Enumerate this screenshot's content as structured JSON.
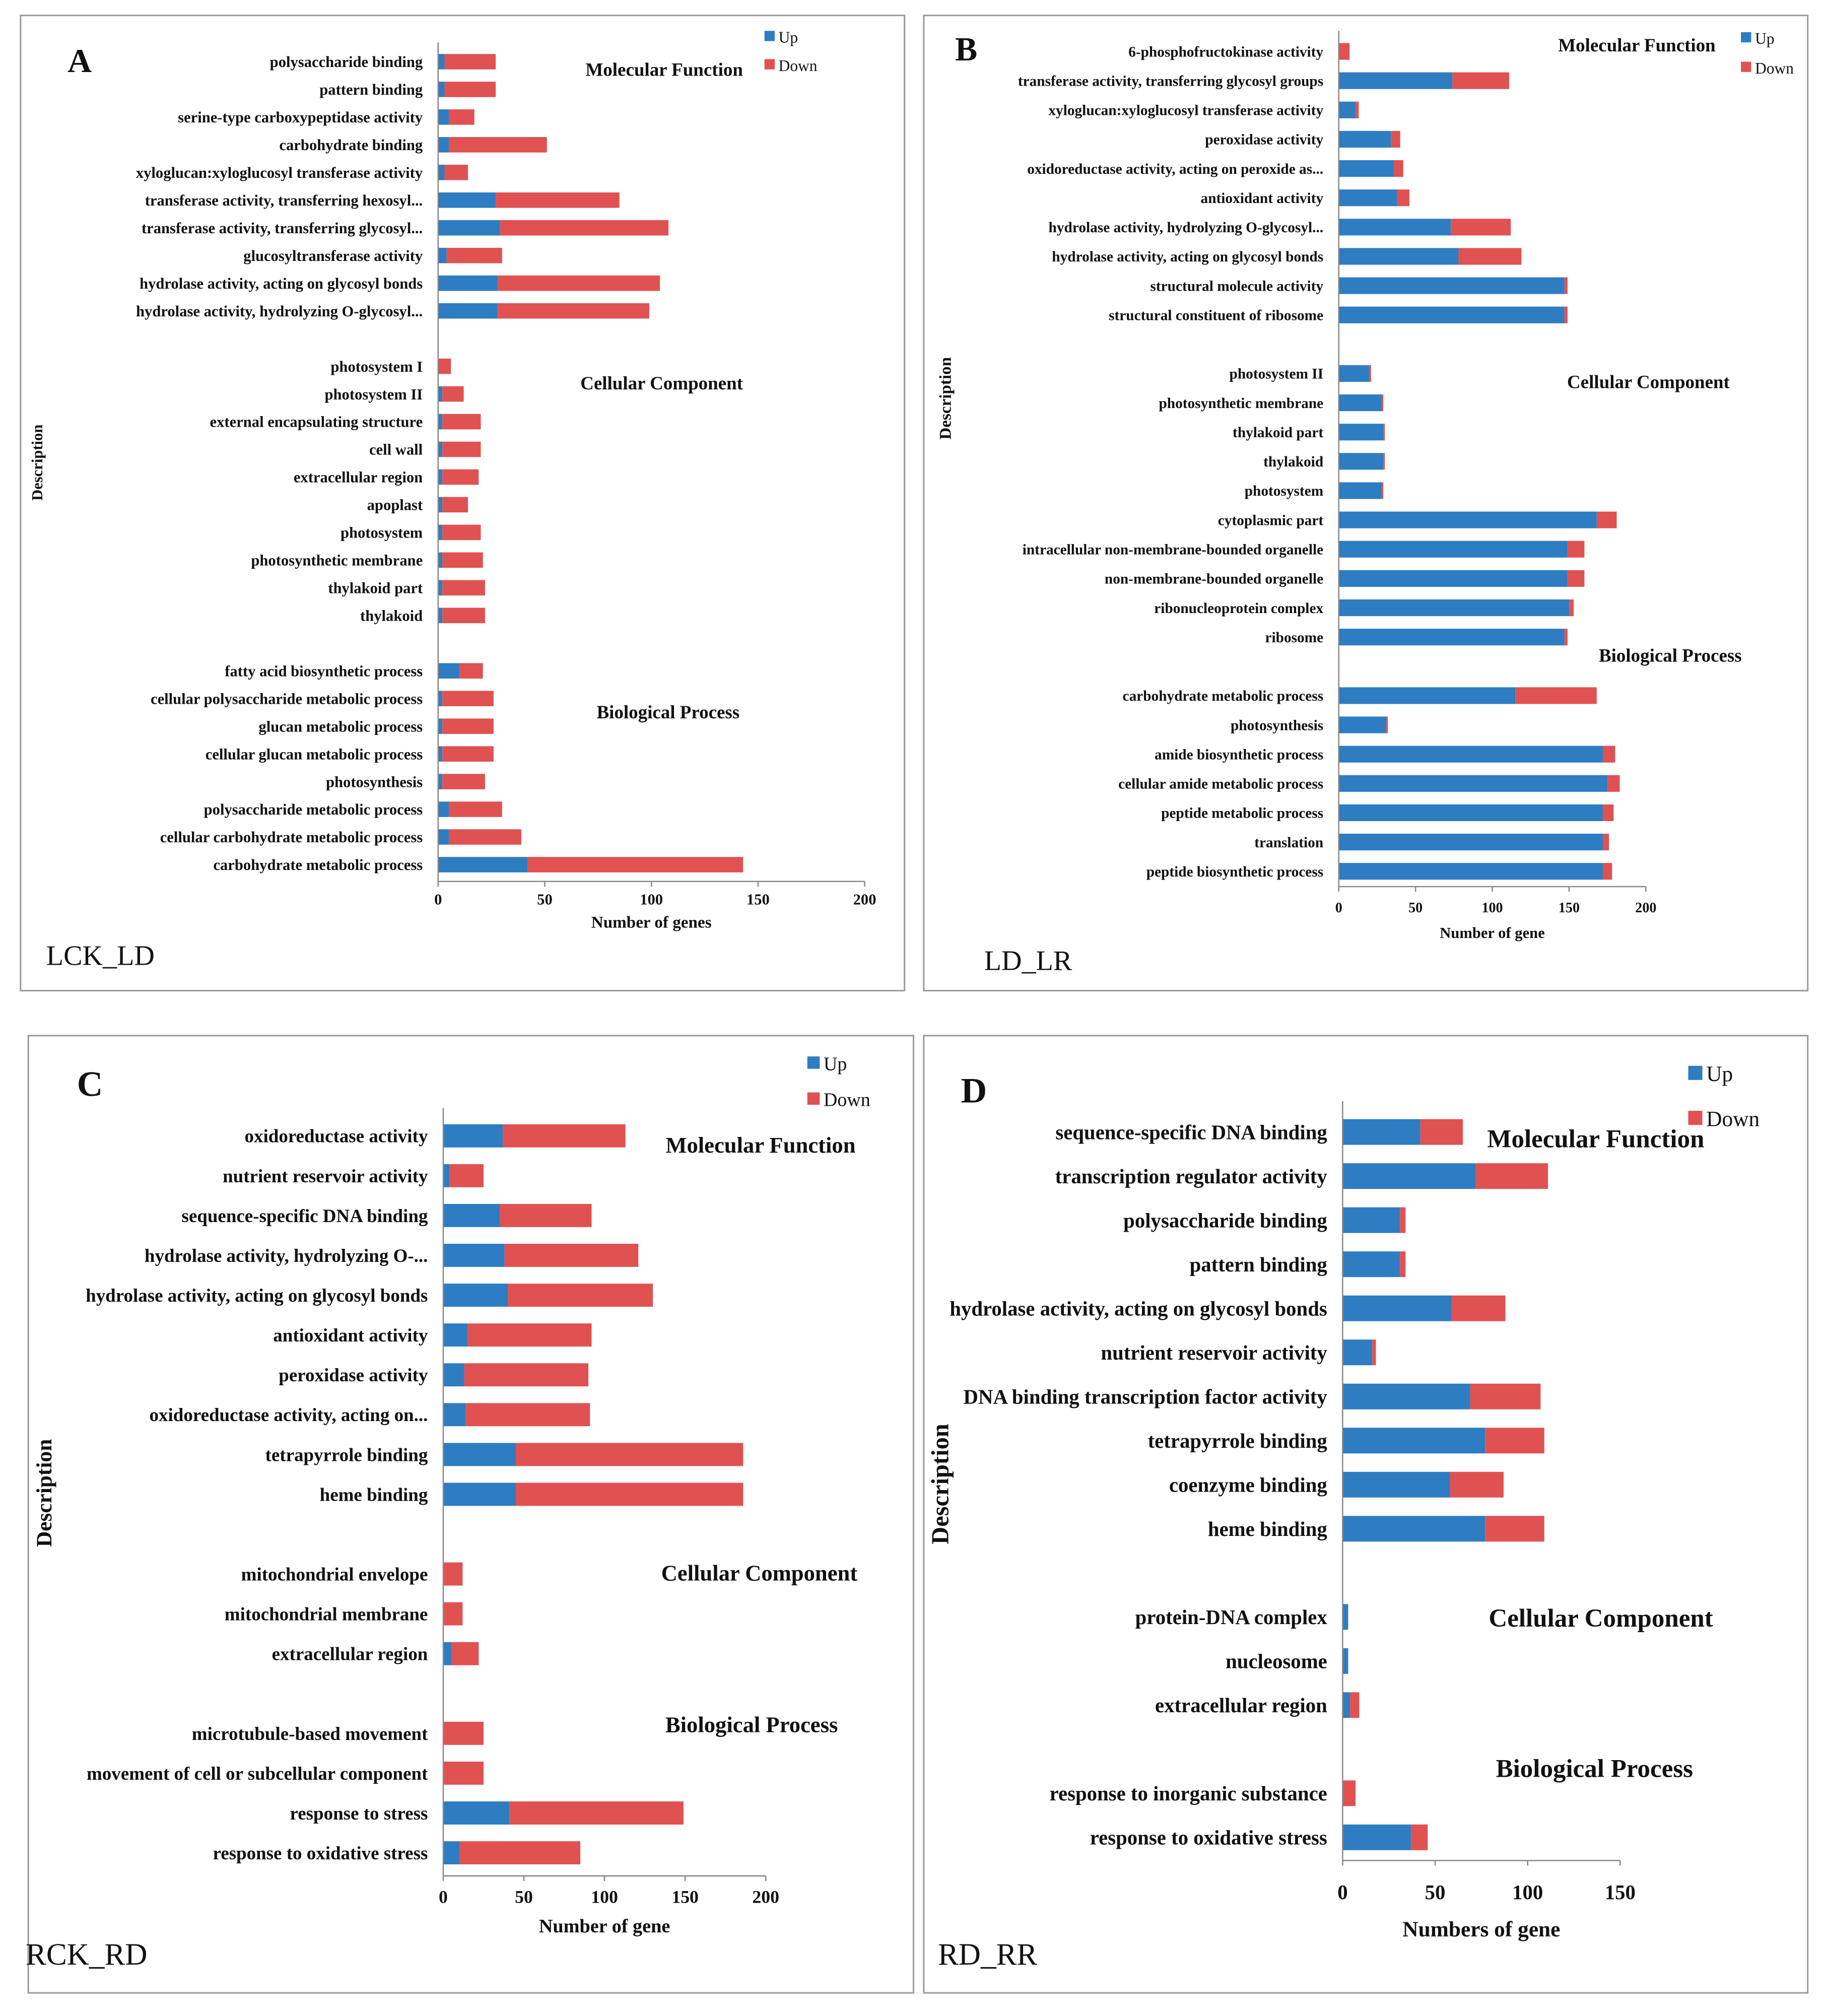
{
  "colors": {
    "up": "#2e7dc2",
    "down": "#e05252",
    "frame": "#9a9a9a",
    "axis": "#888888"
  },
  "chart_data": [
    {
      "type": "bar",
      "stacked": true,
      "orientation": "horizontal",
      "letter": "A",
      "name": "LCK_LD",
      "xlabel": "Number  of genes",
      "ylabel": "Description",
      "legend": [
        "Up",
        "Down"
      ],
      "legend_position": "top-right",
      "xlim": [
        0,
        200
      ],
      "ticks": [
        "0",
        "50",
        "100",
        "150",
        "200"
      ],
      "groups": [
        {
          "title": "Molecular Function",
          "categories": [
            "polysaccharide binding",
            "pattern binding",
            "serine-type carboxypeptidase activity",
            "carbohydrate binding",
            "xyloglucan:xyloglucosyl transferase activity",
            "transferase activity, transferring hexosyl...",
            "transferase activity, transferring glycosyl...",
            "glucosyltransferase activity",
            "hydrolase activity, acting on glycosyl bonds",
            "hydrolase activity, hydrolyzing O-glycosyl..."
          ],
          "up": [
            3,
            3,
            5,
            5,
            3,
            27,
            29,
            4,
            28,
            28
          ],
          "down": [
            24,
            24,
            12,
            46,
            11,
            58,
            79,
            26,
            76,
            71
          ]
        },
        {
          "title": "Cellular Component",
          "categories": [
            "photosystem I",
            "photosystem II",
            "external encapsulating structure",
            "cell wall",
            "extracellular region",
            "apoplast",
            "photosystem",
            "photosynthetic membrane",
            "thylakoid part",
            "thylakoid"
          ],
          "up": [
            0,
            2,
            2,
            2,
            2,
            2,
            2,
            2,
            2,
            2
          ],
          "down": [
            6,
            10,
            18,
            18,
            17,
            12,
            18,
            19,
            20,
            20
          ]
        },
        {
          "title": "Biological Process",
          "categories": [
            "fatty acid biosynthetic process",
            "cellular polysaccharide metabolic process",
            "glucan metabolic process",
            "cellular glucan metabolic process",
            "photosynthesis",
            "polysaccharide metabolic process",
            "cellular carbohydrate metabolic process",
            "carbohydrate metabolic process"
          ],
          "up": [
            10,
            2,
            2,
            2,
            2,
            5,
            5,
            42
          ],
          "down": [
            11,
            24,
            24,
            24,
            20,
            25,
            34,
            101
          ]
        }
      ]
    },
    {
      "type": "bar",
      "stacked": true,
      "orientation": "horizontal",
      "letter": "B",
      "name": "LD_LR",
      "xlabel": "Number  of gene",
      "ylabel": "Description",
      "legend": [
        "Up",
        "Down"
      ],
      "legend_position": "top-right",
      "xlim": [
        0,
        200
      ],
      "ticks": [
        "0",
        "50",
        "100",
        "150",
        "200"
      ],
      "groups": [
        {
          "title": "Molecular Function",
          "categories": [
            "6-phosphofructokinase activity",
            "transferase activity, transferring glycosyl groups",
            "xyloglucan:xyloglucosyl transferase activity",
            "peroxidase activity",
            "oxidoreductase activity, acting on peroxide as...",
            "antioxidant activity",
            "hydrolase activity, hydrolyzing O-glycosyl...",
            "hydrolase activity, acting on glycosyl bonds",
            "structural molecule activity",
            "structural constituent of ribosome"
          ],
          "up": [
            0,
            74,
            11,
            34,
            36,
            38,
            73,
            78,
            147,
            147
          ],
          "down": [
            7,
            37,
            2,
            6,
            6,
            8,
            39,
            41,
            2,
            2
          ]
        },
        {
          "title": "Cellular Component",
          "categories": [
            "photosystem II",
            "photosynthetic membrane",
            "thylakoid part",
            "thylakoid",
            "photosystem",
            "cytoplasmic part",
            "intracellular non-membrane-bounded organelle",
            "non-membrane-bounded organelle",
            "ribonucleoprotein complex",
            "ribosome"
          ],
          "up": [
            20,
            28,
            29,
            29,
            28,
            168,
            149,
            149,
            150,
            147
          ],
          "down": [
            1,
            1,
            1,
            1,
            1,
            13,
            11,
            11,
            3,
            2
          ]
        },
        {
          "title": "Biological Process",
          "categories": [
            "carbohydrate metabolic process",
            "photosynthesis",
            "amide biosynthetic process",
            "cellular amide metabolic process",
            "peptide metabolic process",
            "translation",
            "peptide biosynthetic process"
          ],
          "up": [
            115,
            31,
            172,
            175,
            172,
            172,
            172
          ],
          "down": [
            53,
            1,
            8,
            8,
            7,
            4,
            6
          ]
        }
      ]
    },
    {
      "type": "bar",
      "stacked": true,
      "orientation": "horizontal",
      "letter": "C",
      "name": "RCK_RD",
      "xlabel": "Number  of gene",
      "ylabel": "Description",
      "legend": [
        "Up",
        "Down"
      ],
      "legend_position": "top-right",
      "xlim": [
        0,
        200
      ],
      "ticks": [
        "0",
        "50",
        "100",
        "150",
        "200"
      ],
      "groups": [
        {
          "title": "Molecular Function",
          "categories": [
            "oxidoreductase activity",
            "nutrient reservoir activity",
            "sequence-specific DNA binding",
            "hydrolase activity, hydrolyzing O-...",
            "hydrolase activity, acting on glycosyl bonds",
            "antioxidant activity",
            "peroxidase activity",
            "oxidoreductase activity, acting on...",
            "tetrapyrrole binding",
            "heme binding"
          ],
          "up": [
            37,
            4,
            35,
            38,
            40,
            15,
            13,
            14,
            45,
            45
          ],
          "down": [
            76,
            21,
            57,
            83,
            90,
            77,
            77,
            77,
            141,
            141
          ]
        },
        {
          "title": "Cellular Component",
          "categories": [
            "mitochondrial envelope",
            "mitochondrial membrane",
            "extracellular region"
          ],
          "up": [
            0,
            0,
            5
          ],
          "down": [
            12,
            12,
            17
          ]
        },
        {
          "title": "Biological Process",
          "categories": [
            "microtubule-based movement",
            "movement of cell or subcellular component",
            "response to stress",
            "response to oxidative stress"
          ],
          "up": [
            0,
            0,
            41,
            10
          ],
          "down": [
            25,
            25,
            108,
            75
          ]
        }
      ]
    },
    {
      "type": "bar",
      "stacked": true,
      "orientation": "horizontal",
      "letter": "D",
      "name": "RD_RR",
      "xlabel": "Numbers  of gene",
      "ylabel": "Description",
      "legend": [
        "Up",
        "Down"
      ],
      "legend_position": "top-right",
      "xlim": [
        0,
        150
      ],
      "ticks": [
        "0",
        "50",
        "100",
        "150"
      ],
      "groups": [
        {
          "title": "Molecular Function",
          "categories": [
            "sequence-specific DNA binding",
            "transcription regulator activity",
            "polysaccharide binding",
            "pattern binding",
            "hydrolase activity, acting on glycosyl bonds",
            "nutrient reservoir activity",
            "DNA binding transcription factor activity",
            "tetrapyrrole binding",
            "coenzyme binding",
            "heme binding"
          ],
          "up": [
            42,
            72,
            31,
            31,
            59,
            16,
            69,
            77,
            58,
            77
          ],
          "down": [
            23,
            39,
            3,
            3,
            29,
            2,
            38,
            32,
            29,
            32
          ]
        },
        {
          "title": "Cellular Component",
          "categories": [
            "protein-DNA complex",
            "nucleosome",
            "extracellular region"
          ],
          "up": [
            3,
            3,
            4
          ],
          "down": [
            0,
            0,
            5
          ]
        },
        {
          "title": "Biological Process",
          "categories": [
            "response to inorganic substance",
            "response to oxidative stress"
          ],
          "up": [
            0,
            37
          ],
          "down": [
            7,
            9
          ]
        }
      ]
    }
  ]
}
